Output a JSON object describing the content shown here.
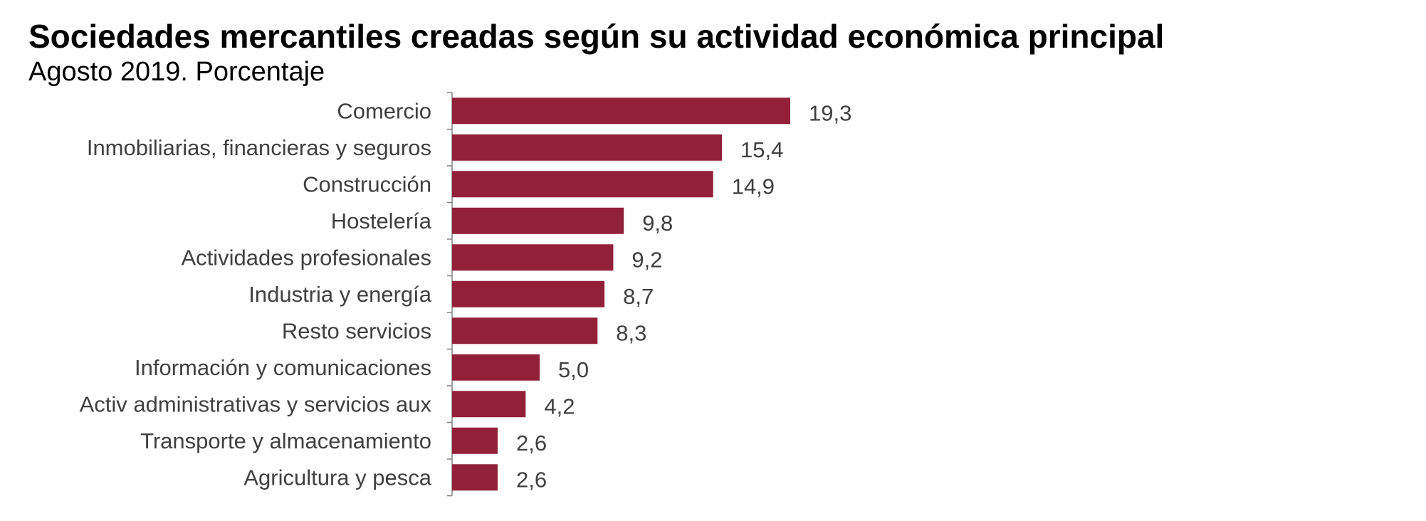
{
  "chart_data": {
    "type": "bar",
    "orientation": "horizontal",
    "title": "Sociedades mercantiles creadas según su actividad económica principal",
    "subtitle": "Agosto 2019. Porcentaje",
    "categories": [
      "Comercio",
      "Inmobiliarias, financieras y seguros",
      "Construcción",
      "Hostelería",
      "Actividades profesionales",
      "Industria y energía",
      "Resto servicios",
      "Información y comunicaciones",
      "Activ administrativas y servicios aux",
      "Transporte y almacenamiento",
      "Agricultura y pesca"
    ],
    "values": [
      19.3,
      15.4,
      14.9,
      9.8,
      9.2,
      8.7,
      8.3,
      5.0,
      4.2,
      2.6,
      2.6
    ],
    "value_labels": [
      "19,3",
      "15,4",
      "14,9",
      "9,8",
      "9,2",
      "8,7",
      "8,3",
      "5,0",
      "4,2",
      "2,6",
      "2,6"
    ],
    "xlabel": "",
    "ylabel": "",
    "xlim": [
      0,
      19.3
    ],
    "grid": false,
    "legend": "none",
    "bar_color": "#93203A",
    "label_color": "#404040",
    "axis_color": "#808080"
  }
}
